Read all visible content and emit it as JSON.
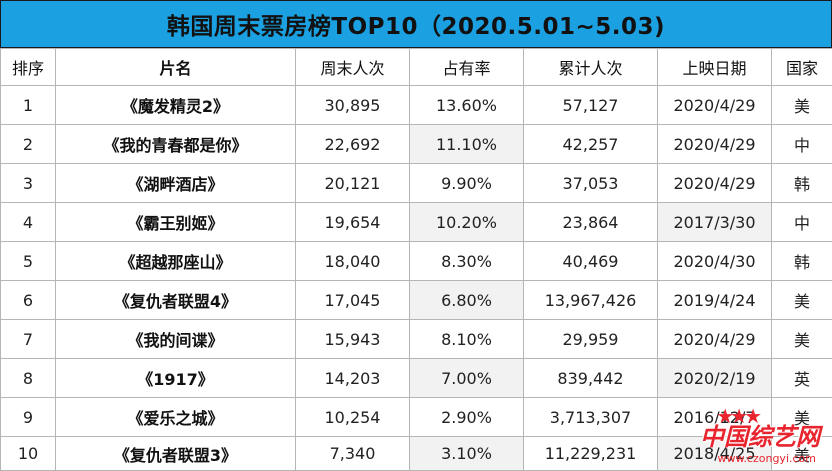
{
  "title": "韩国周末票房榜TOP10（2020.5.01~5.03)",
  "headers": [
    "排序",
    "片名",
    "周末人次",
    "占有率",
    "累计人次",
    "上映日期",
    "国家"
  ],
  "rows": [
    [
      "1",
      "《魔发精灵2》",
      "30,895",
      "13.60%",
      "57,127",
      "2020/4/29",
      "美"
    ],
    [
      "2",
      "《我的青春都是你》",
      "22,692",
      "11.10%",
      "42,257",
      "2020/4/29",
      "中"
    ],
    [
      "3",
      "《湖畔酒店》",
      "20,121",
      "9.90%",
      "37,053",
      "2020/4/29",
      "韩"
    ],
    [
      "4",
      "《霸王别姬》",
      "19,654",
      "10.20%",
      "23,864",
      "2017/3/30",
      "中"
    ],
    [
      "5",
      "《超越那座山》",
      "18,040",
      "8.30%",
      "40,469",
      "2020/4/30",
      "韩"
    ],
    [
      "6",
      "《复仇者联盟4》",
      "17,045",
      "6.80%",
      "13,967,426",
      "2019/4/24",
      "美"
    ],
    [
      "7",
      "《我的间谍》",
      "15,943",
      "8.10%",
      "29,959",
      "2020/4/29",
      "美"
    ],
    [
      "8",
      "《1917》",
      "14,203",
      "7.00%",
      "839,442",
      "2020/2/19",
      "英"
    ],
    [
      "9",
      "《爱乐之城》",
      "10,254",
      "2.90%",
      "3,713,307",
      "2016/12/7",
      "美"
    ],
    [
      "10",
      "《复仇者联盟3》",
      "7,340",
      "3.10%",
      "11,229,231",
      "2018/4/25",
      "美"
    ]
  ],
  "watermark": {
    "text": "中国综艺网",
    "url": "www.czongyi.com",
    "color": "#e8252e"
  },
  "colors": {
    "title_bg": "#1ba1e2",
    "shade": "#f2f2f2"
  }
}
